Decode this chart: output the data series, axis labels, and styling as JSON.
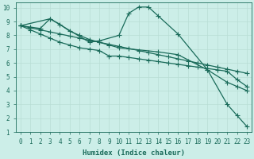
{
  "xlabel": "Humidex (Indice chaleur)",
  "background_color": "#cceee8",
  "line_color": "#1a6b5a",
  "grid_color": "#b8ddd5",
  "xlim": [
    -0.5,
    23.5
  ],
  "ylim": [
    1,
    10.4
  ],
  "xticks": [
    0,
    1,
    2,
    3,
    4,
    5,
    6,
    7,
    8,
    9,
    10,
    11,
    12,
    13,
    14,
    15,
    16,
    17,
    18,
    19,
    20,
    21,
    22,
    23
  ],
  "yticks": [
    1,
    2,
    3,
    4,
    5,
    6,
    7,
    8,
    9,
    10
  ],
  "curves": [
    {
      "x": [
        0,
        3,
        7,
        8,
        10,
        11,
        12,
        13,
        14,
        16,
        19,
        21,
        22,
        23
      ],
      "y": [
        8.7,
        9.2,
        7.5,
        7.6,
        8.0,
        9.6,
        10.05,
        10.05,
        9.4,
        8.1,
        5.5,
        3.0,
        2.2,
        1.4
      ]
    },
    {
      "x": [
        0,
        1,
        2,
        3,
        4,
        5,
        6,
        7,
        8,
        9,
        10,
        14,
        16,
        19,
        21,
        22,
        23
      ],
      "y": [
        8.7,
        8.6,
        8.5,
        9.2,
        8.8,
        8.3,
        8.0,
        7.7,
        7.5,
        7.3,
        7.1,
        6.8,
        6.6,
        5.5,
        4.6,
        4.3,
        4.0
      ]
    },
    {
      "x": [
        0,
        1,
        2,
        3,
        4,
        5,
        6,
        7,
        8,
        9,
        10,
        11,
        12,
        13,
        14,
        15,
        16,
        17,
        18,
        19,
        20,
        21,
        22,
        23
      ],
      "y": [
        8.7,
        8.55,
        8.4,
        8.25,
        8.1,
        7.95,
        7.8,
        7.65,
        7.5,
        7.35,
        7.2,
        7.05,
        6.9,
        6.75,
        6.6,
        6.45,
        6.3,
        6.15,
        6.0,
        5.85,
        5.7,
        5.55,
        5.4,
        5.25
      ]
    },
    {
      "x": [
        0,
        1,
        2,
        3,
        4,
        5,
        6,
        7,
        8,
        9,
        10,
        11,
        12,
        13,
        14,
        15,
        16,
        17,
        18,
        19,
        20,
        21,
        22,
        23
      ],
      "y": [
        8.7,
        8.4,
        8.1,
        7.8,
        7.5,
        7.3,
        7.1,
        7.0,
        6.9,
        6.5,
        6.5,
        6.4,
        6.3,
        6.2,
        6.1,
        6.0,
        5.9,
        5.8,
        5.7,
        5.6,
        5.5,
        5.4,
        4.8,
        4.3
      ]
    }
  ],
  "marker": "+",
  "markersize": 4,
  "linewidth": 0.9,
  "xlabel_fontsize": 6.5,
  "tick_fontsize": 5.5
}
